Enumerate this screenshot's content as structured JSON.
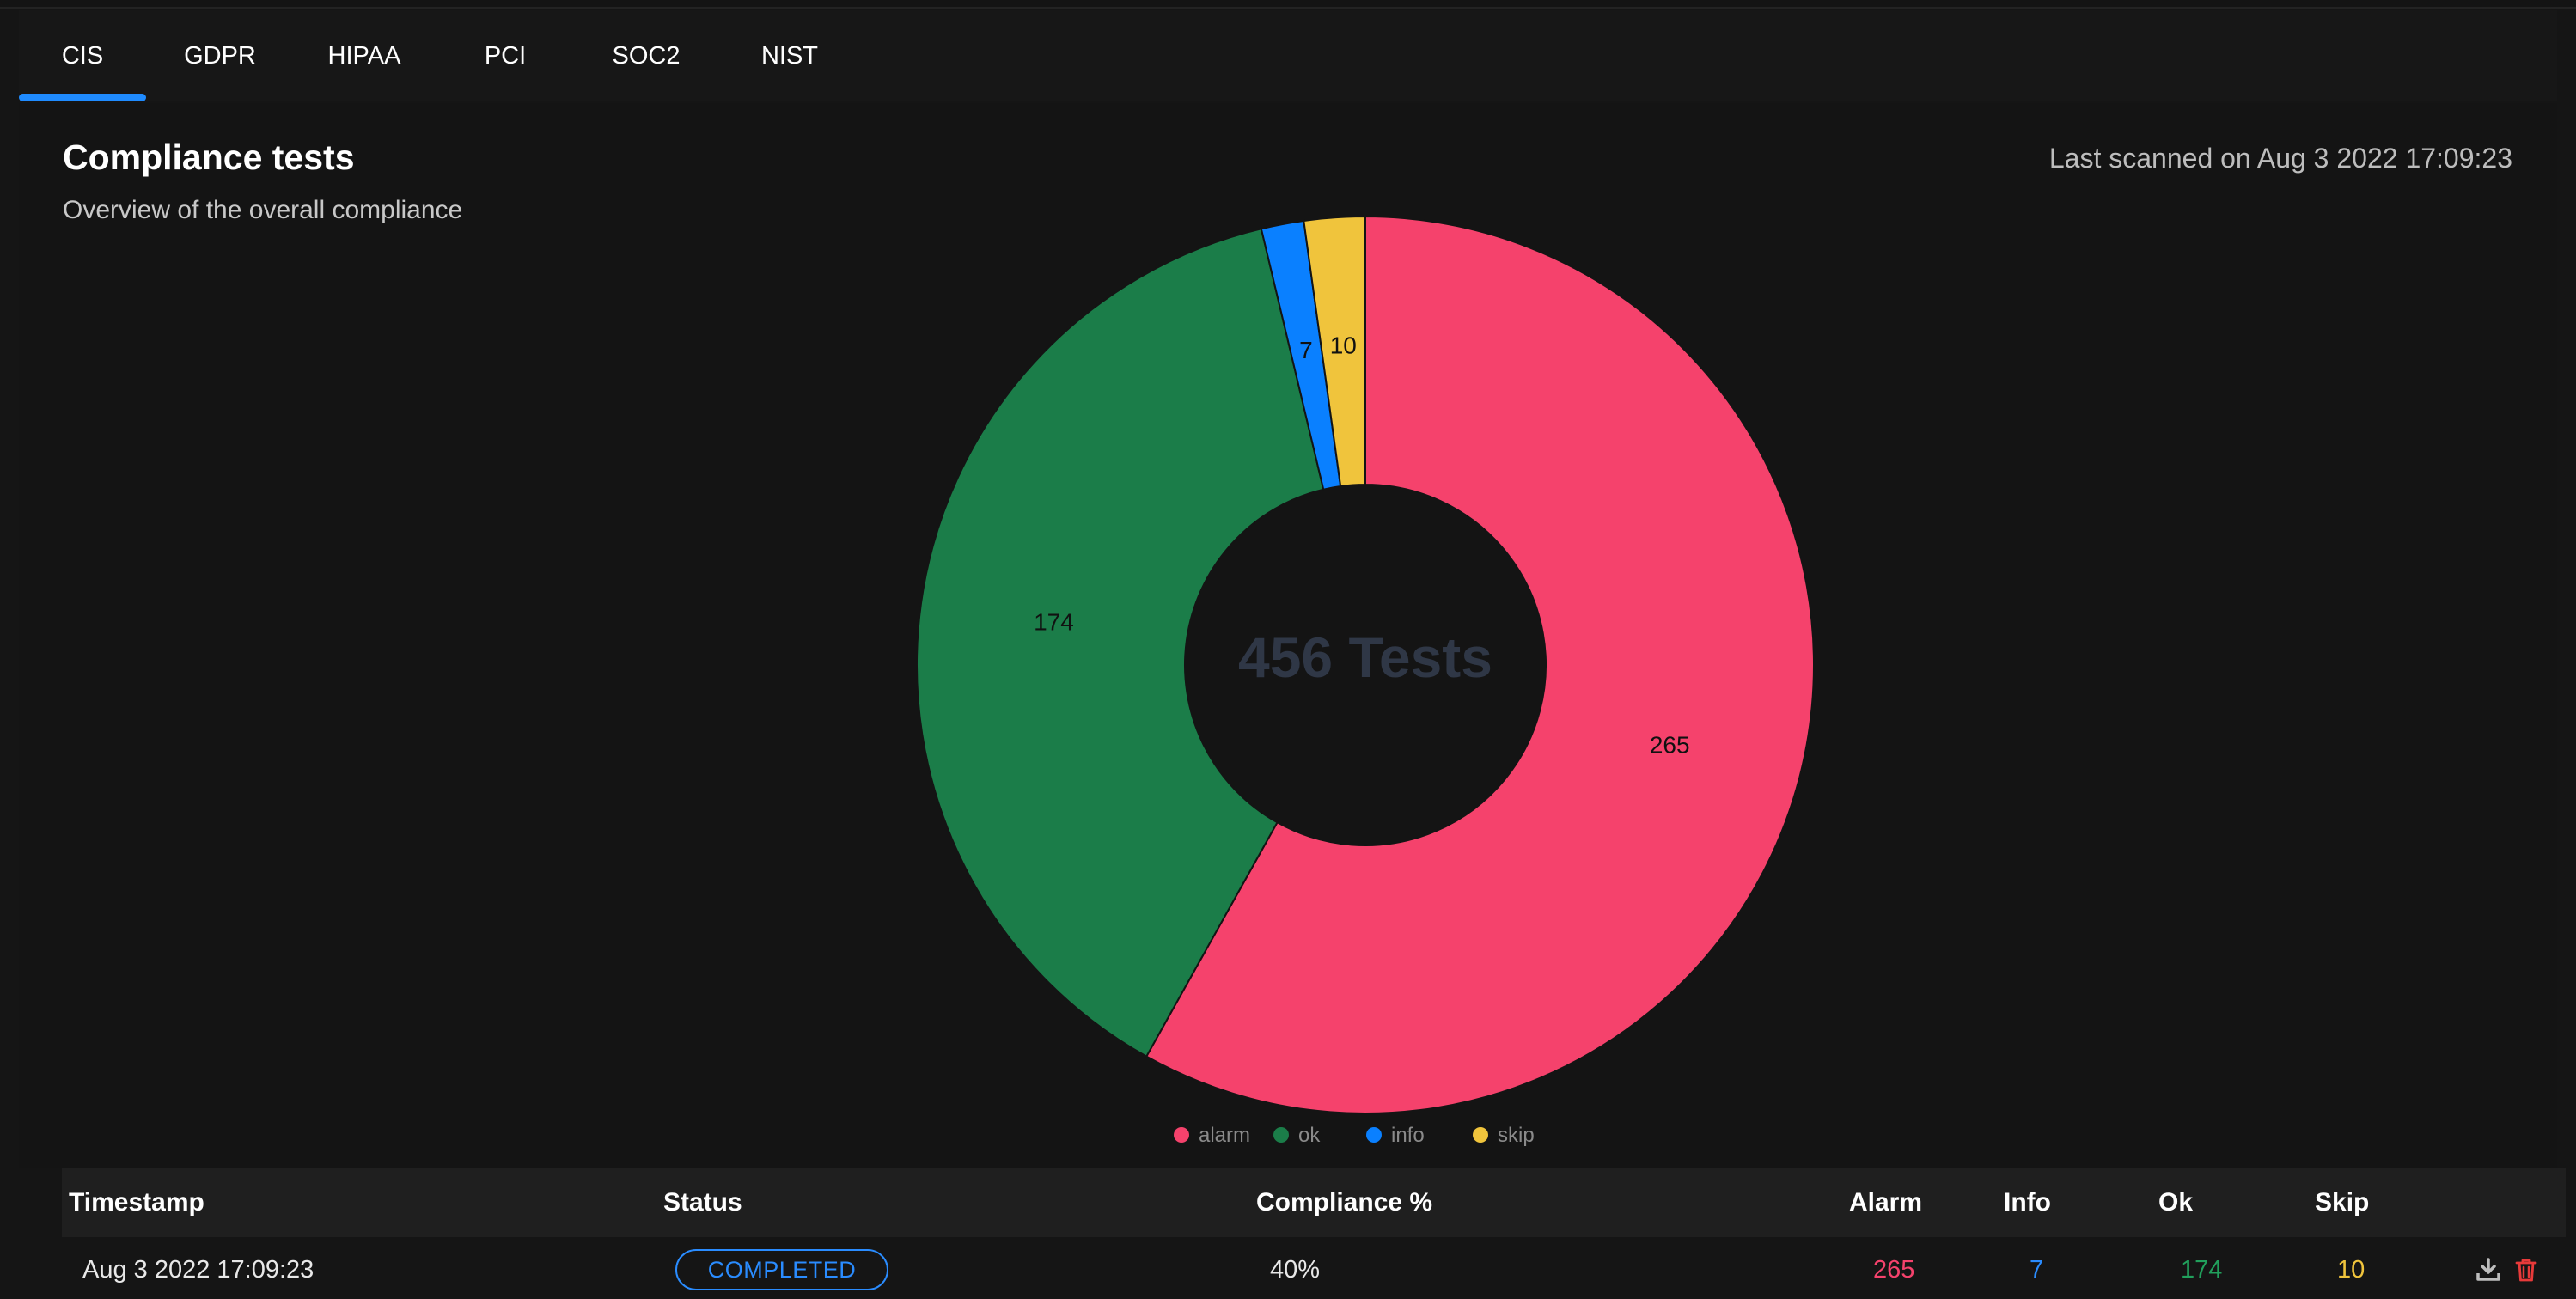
{
  "tabs": [
    {
      "label": "CIS",
      "active": true
    },
    {
      "label": "GDPR",
      "active": false
    },
    {
      "label": "HIPAA",
      "active": false
    },
    {
      "label": "PCI",
      "active": false
    },
    {
      "label": "SOC2",
      "active": false
    },
    {
      "label": "NIST",
      "active": false
    }
  ],
  "header": {
    "title": "Compliance tests",
    "subtitle": "Overview of the overall compliance",
    "last_scanned": "Last scanned on Aug 3 2022 17:09:23"
  },
  "chart_data": {
    "type": "pie",
    "donut": true,
    "center_label": "456 Tests",
    "legend_position": "bottom",
    "categories": [
      "alarm",
      "ok",
      "info",
      "skip"
    ],
    "values": [
      265,
      174,
      7,
      10
    ],
    "colors": [
      "#f5426c",
      "#1b7d49",
      "#0a80ff",
      "#f0c43c"
    ]
  },
  "table": {
    "headers": {
      "timestamp": "Timestamp",
      "status": "Status",
      "compliance": "Compliance %",
      "alarm": "Alarm",
      "info": "Info",
      "ok": "Ok",
      "skip": "Skip"
    },
    "rows": [
      {
        "timestamp": "Aug 3 2022 17:09:23",
        "status": "COMPLETED",
        "compliance": "40%",
        "alarm": "265",
        "info": "7",
        "ok": "174",
        "skip": "10"
      }
    ],
    "value_colors": {
      "alarm": "#f5426c",
      "info": "#2a8cff",
      "ok": "#21a05c",
      "skip": "#f0c43c"
    },
    "row_icons": [
      "download-icon",
      "trash-icon"
    ]
  }
}
